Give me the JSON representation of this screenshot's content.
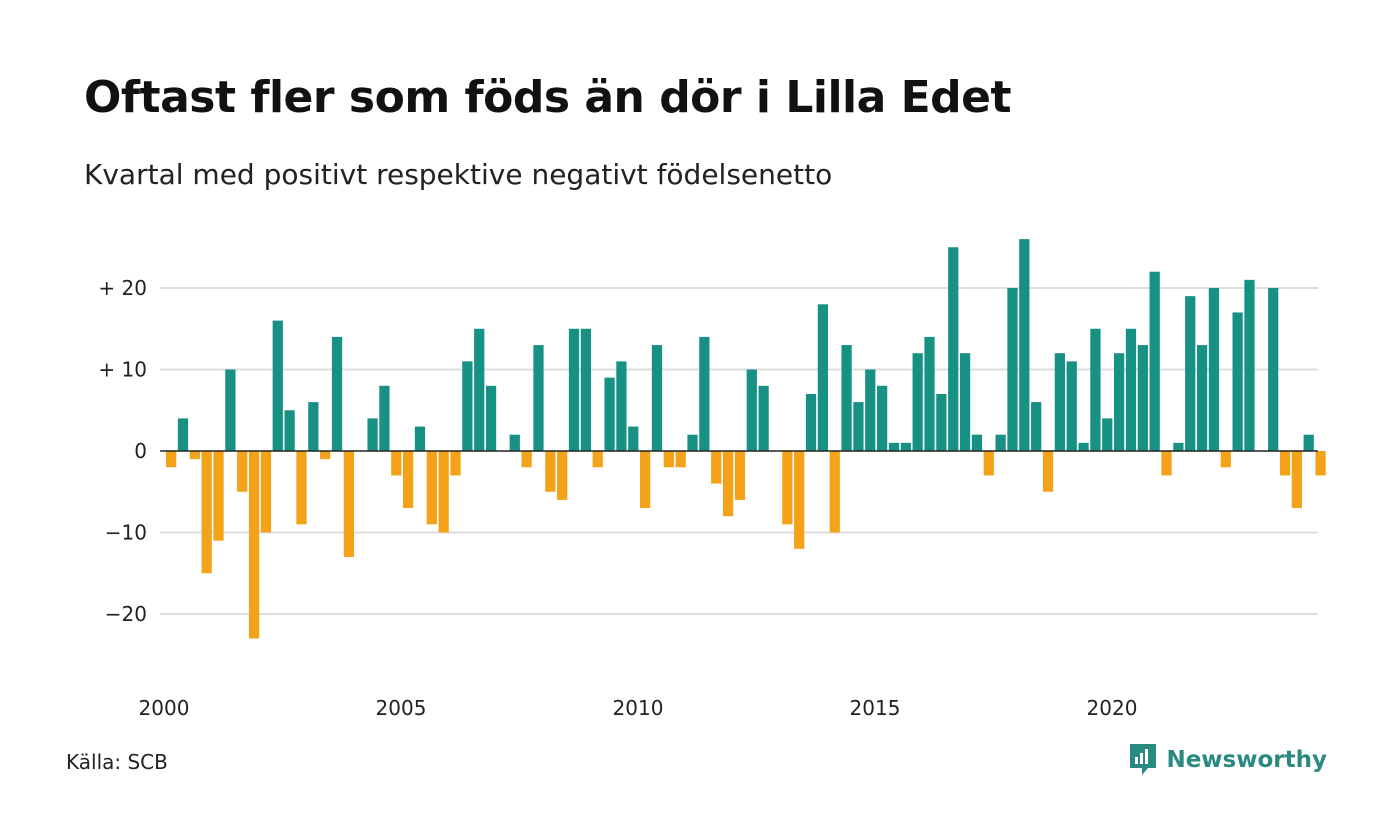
{
  "header": {
    "title": "Oftast fler som föds än dör i Lilla Edet",
    "subtitle": "Kvartal med positivt respektive negativt födelsenetto"
  },
  "footer": {
    "source": "Källa: SCB",
    "brand": "Newsworthy",
    "brand_icon": "newsworthy-logo-icon"
  },
  "colors": {
    "positive": "#169184",
    "negative": "#f5a21b",
    "grid": "#dddddd",
    "zero_line": "#222222",
    "brand": "#2a8a82"
  },
  "chart_data": {
    "type": "bar",
    "title": "Oftast fler som föds än dör i Lilla Edet",
    "subtitle": "Kvartal med positivt respektive negativt födelsenetto",
    "xlabel": "",
    "ylabel": "",
    "start_year": 2000,
    "quarters_per_year": 4,
    "x_ticks": [
      2000,
      2005,
      2010,
      2015,
      2020
    ],
    "x_tick_labels": [
      "2000",
      "2005",
      "2010",
      "2015",
      "2020"
    ],
    "y_ticks": [
      -20,
      -10,
      0,
      10,
      20
    ],
    "y_tick_labels": [
      "−20",
      "−10",
      "0",
      "+ 10",
      "+ 20"
    ],
    "ylim": [
      -28,
      28
    ],
    "grid": true,
    "legend": "none",
    "values": [
      -2,
      4,
      -1,
      -15,
      -11,
      10,
      -5,
      -23,
      -10,
      16,
      5,
      -9,
      6,
      -1,
      14,
      -13,
      0,
      4,
      8,
      -3,
      -7,
      3,
      -9,
      -10,
      -3,
      11,
      15,
      8,
      0,
      2,
      -2,
      13,
      -5,
      -6,
      15,
      15,
      -2,
      9,
      11,
      3,
      -7,
      13,
      -2,
      -2,
      2,
      14,
      -4,
      -8,
      -6,
      10,
      8,
      0,
      -9,
      -12,
      7,
      18,
      -10,
      13,
      6,
      10,
      8,
      1,
      1,
      12,
      14,
      7,
      25,
      12,
      2,
      -3,
      2,
      20,
      26,
      6,
      -5,
      12,
      11,
      1,
      15,
      4,
      12,
      15,
      13,
      22,
      -3,
      1,
      19,
      13,
      20,
      -2,
      17,
      21,
      0,
      20,
      -3,
      -7,
      2,
      -3
    ]
  }
}
